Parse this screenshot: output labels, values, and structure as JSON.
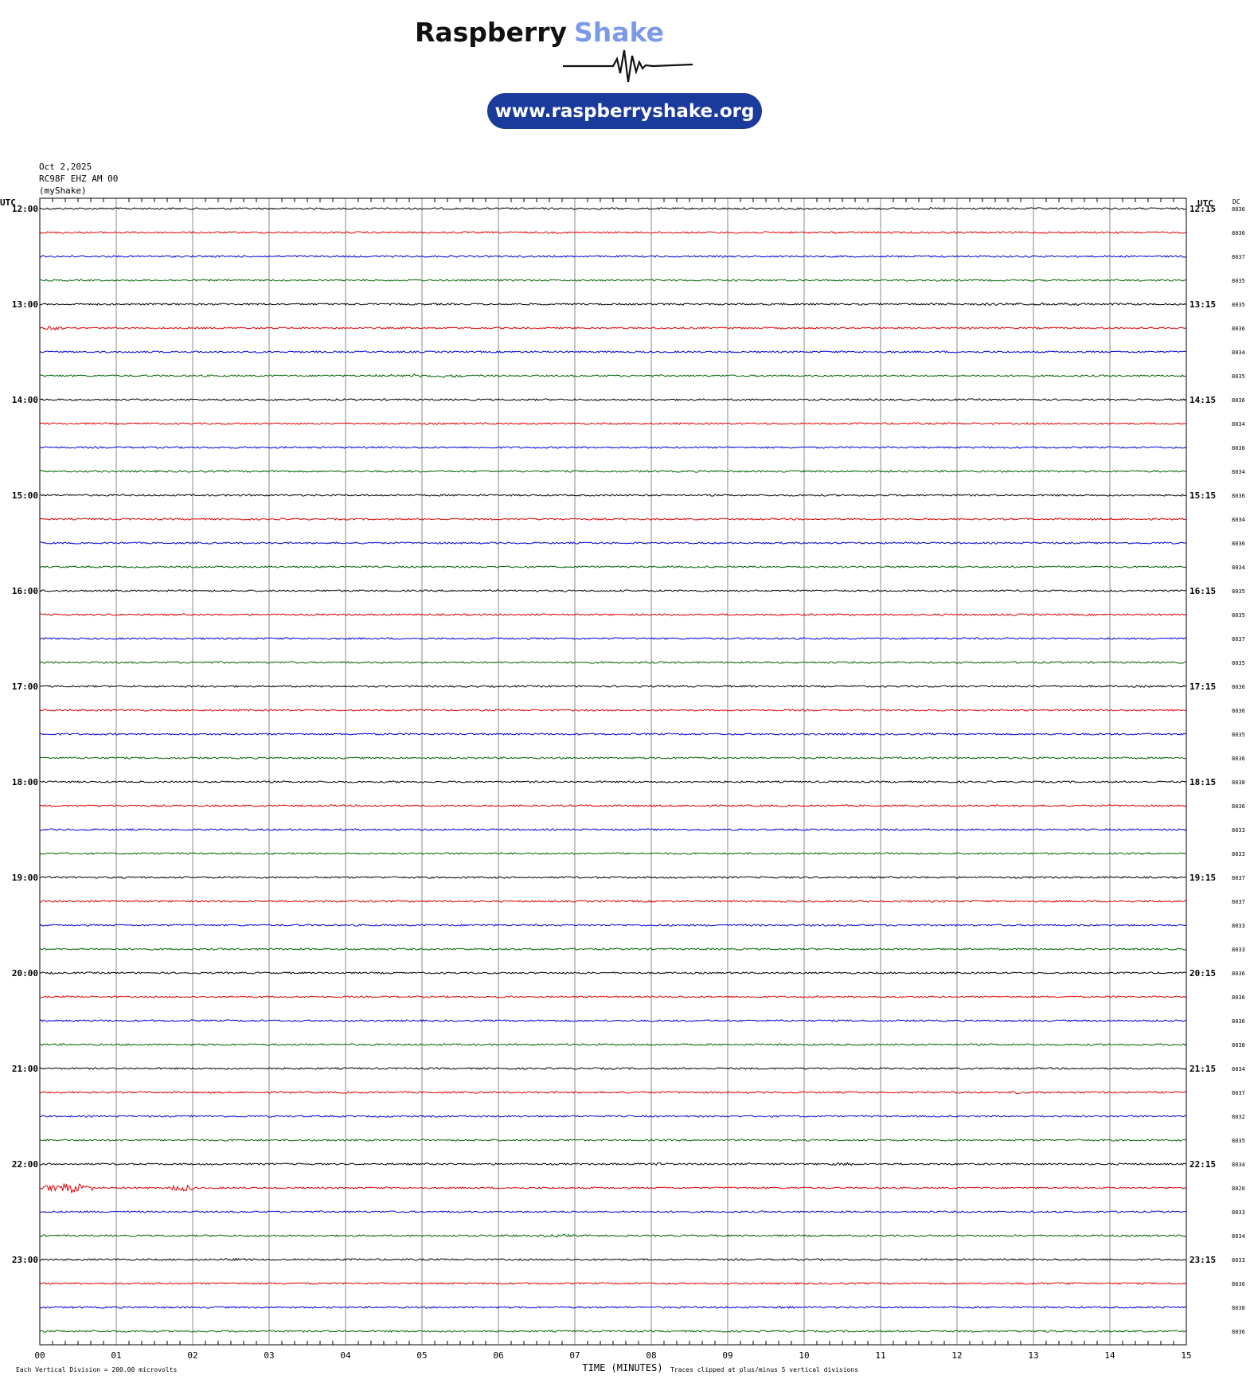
{
  "header": {
    "brand_word1": "Raspberry",
    "brand_word2": "Shake",
    "url": "www.raspberryshake.org",
    "colors": {
      "brand_dark": "#111111",
      "brand_accent": "#7b9be8",
      "pill": "#1a3a9c"
    }
  },
  "chart_data": {
    "type": "line",
    "title": "",
    "info_lines": [
      "Oct 2,2025",
      "RC98F EHZ AM 00",
      "(myShake)"
    ],
    "left_axis_title": "UTC",
    "right_axis_title": "UTC",
    "dc_title": "DC",
    "xlabel": "TIME (MINUTES)",
    "x_ticks": [
      "00",
      "01",
      "02",
      "03",
      "04",
      "05",
      "06",
      "07",
      "08",
      "09",
      "10",
      "11",
      "12",
      "13",
      "14",
      "15"
    ],
    "xlim": [
      0,
      15
    ],
    "grid": true,
    "trace_colors": [
      "#000000",
      "#e00000",
      "#0000d8",
      "#006400"
    ],
    "left_labels": [
      "12:00",
      "13:00",
      "14:00",
      "15:00",
      "16:00",
      "17:00",
      "18:00",
      "19:00",
      "20:00",
      "21:00",
      "22:00",
      "23:00"
    ],
    "right_labels": [
      "12:15",
      "13:15",
      "14:15",
      "15:15",
      "16:15",
      "17:15",
      "18:15",
      "19:15",
      "20:15",
      "21:15",
      "22:15",
      "23:15"
    ],
    "dc_values": [
      "8036",
      "8036",
      "8037",
      "8035",
      "8035",
      "8036",
      "8034",
      "8035",
      "8036",
      "8034",
      "8036",
      "8034",
      "8036",
      "8034",
      "8036",
      "8034",
      "8035",
      "8035",
      "8037",
      "8035",
      "8036",
      "8036",
      "8035",
      "8036",
      "8038",
      "8036",
      "8033",
      "8033",
      "8037",
      "8037",
      "8033",
      "8033",
      "8036",
      "8036",
      "8036",
      "8038",
      "8034",
      "8037",
      "8032",
      "8035",
      "8034",
      "8020",
      "8033",
      "8034",
      "8033",
      "8036",
      "8038",
      "8036"
    ],
    "events": [
      {
        "row": 4,
        "start_min": 11.0,
        "end_min": 15.0,
        "amp": 1.8
      },
      {
        "row": 5,
        "start_min": 0.0,
        "end_min": 0.3,
        "amp": 3.0
      },
      {
        "row": 7,
        "start_min": 4.3,
        "end_min": 5.8,
        "amp": 2.2
      },
      {
        "row": 37,
        "start_min": 12.6,
        "end_min": 12.9,
        "amp": 2.0
      },
      {
        "row": 40,
        "start_min": 7.8,
        "end_min": 8.3,
        "amp": 1.8
      },
      {
        "row": 40,
        "start_min": 10.3,
        "end_min": 10.7,
        "amp": 2.2
      },
      {
        "row": 41,
        "start_min": 0.05,
        "end_min": 0.7,
        "amp": 6.0
      },
      {
        "row": 41,
        "start_min": 1.7,
        "end_min": 2.0,
        "amp": 5.0
      },
      {
        "row": 43,
        "start_min": 6.0,
        "end_min": 7.5,
        "amp": 1.7
      },
      {
        "row": 44,
        "start_min": 2.3,
        "end_min": 3.0,
        "amp": 1.8
      },
      {
        "row": 45,
        "start_min": 13.0,
        "end_min": 13.9,
        "amp": 1.6
      },
      {
        "row": 46,
        "start_min": 9.5,
        "end_min": 10.0,
        "amp": 1.7
      },
      {
        "row": 46,
        "start_min": 14.3,
        "end_min": 15.0,
        "amp": 1.6
      },
      {
        "row": 47,
        "start_min": 12.9,
        "end_min": 13.3,
        "amp": 2.0
      }
    ],
    "footer_left": "Each Vertical Division =  200.00 microvolts",
    "footer_right": "Traces clipped at plus/minus 5 vertical divisions"
  }
}
